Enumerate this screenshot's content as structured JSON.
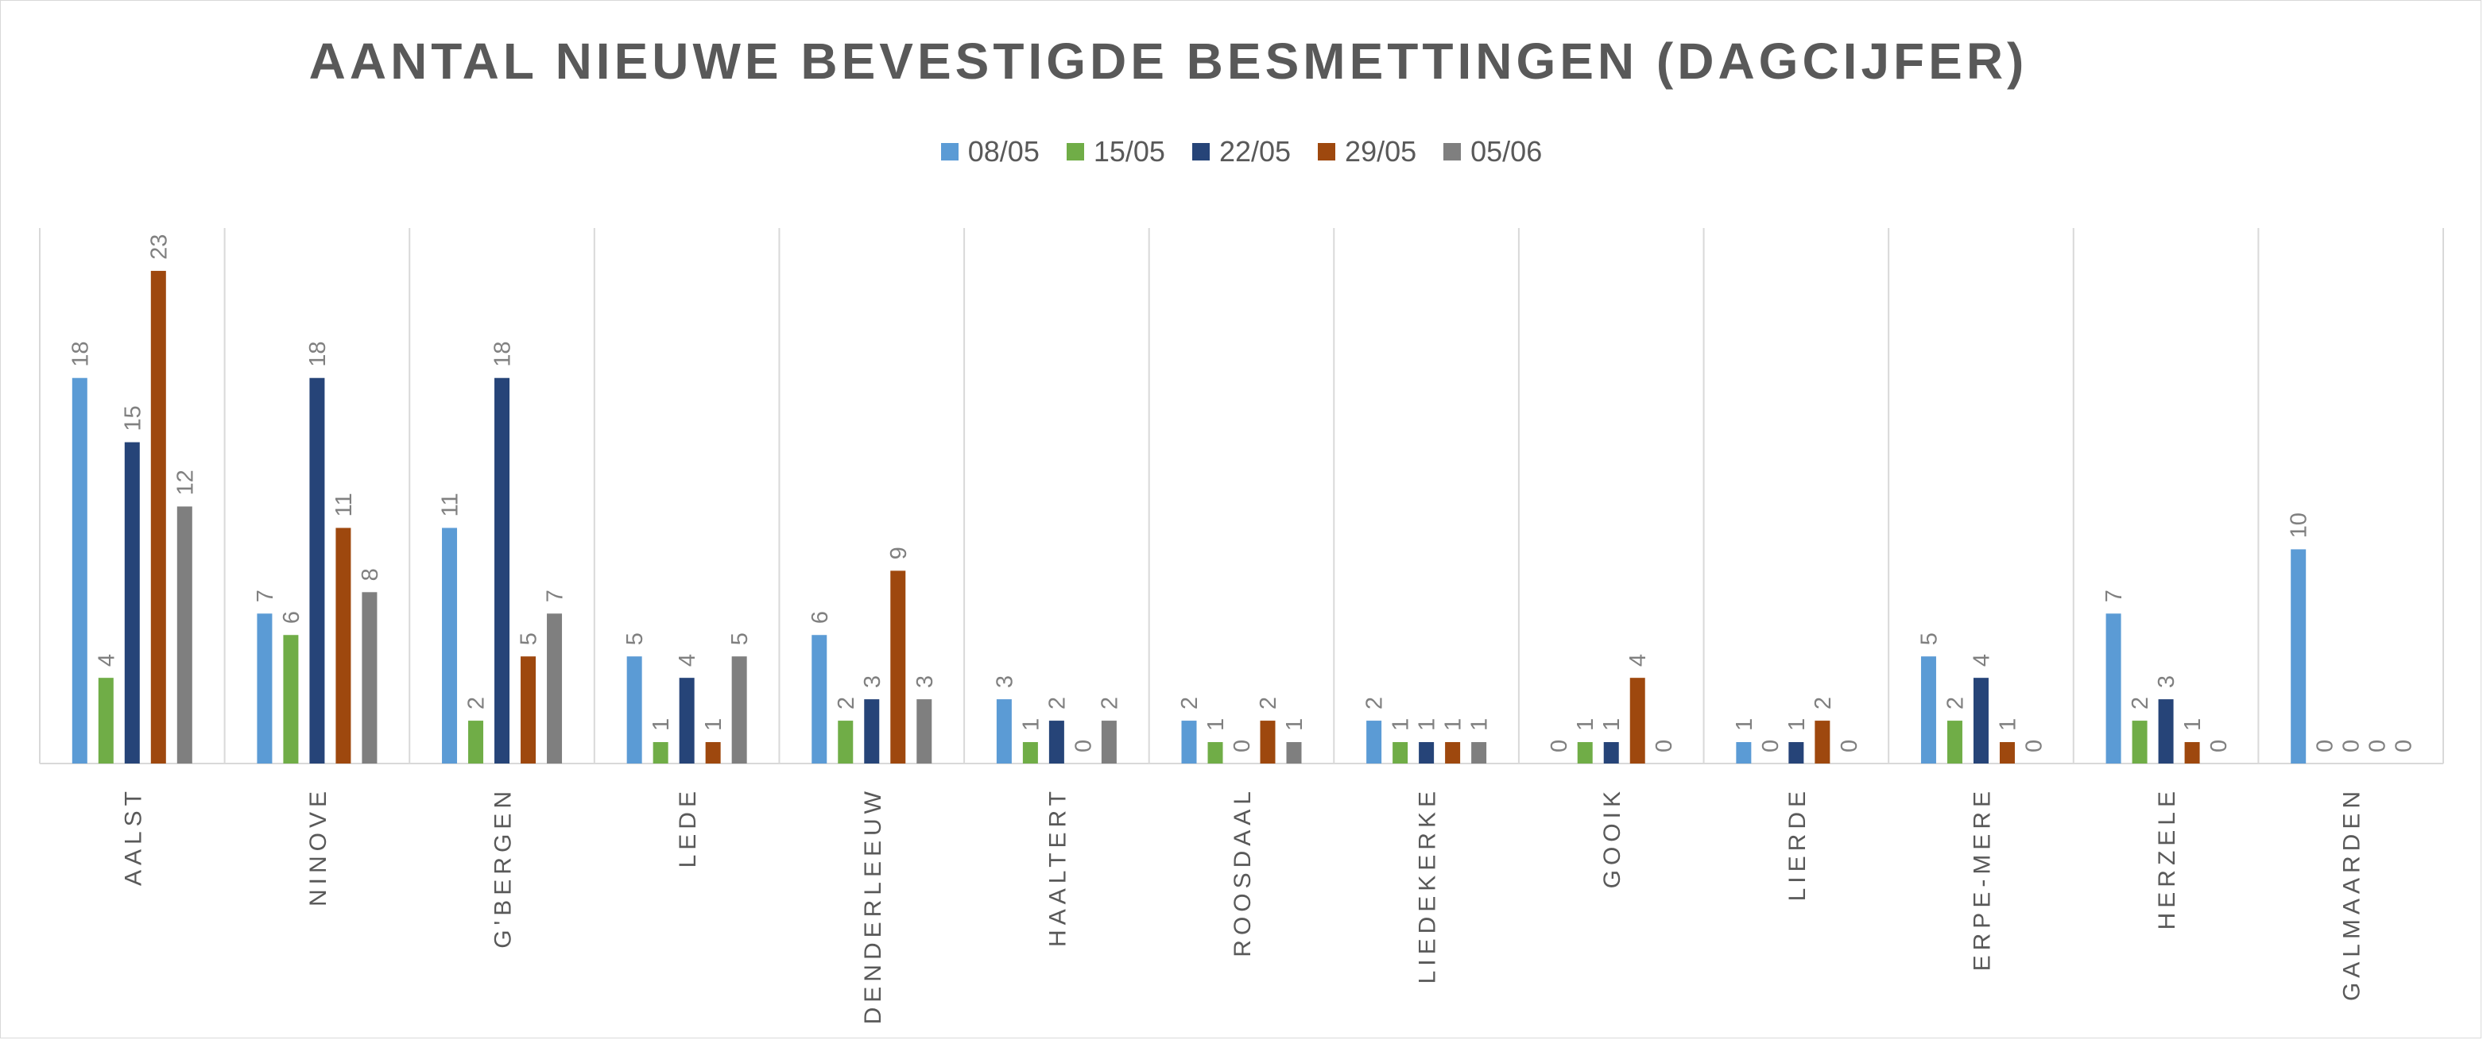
{
  "chart_data": {
    "type": "bar",
    "title": "AANTAL NIEUWE BEVESTIGDE BESMETTINGEN (DAGCIJFER)",
    "xlabel": "",
    "ylabel": "",
    "ylim": [
      0,
      25
    ],
    "grid": false,
    "legend_position": "top-center",
    "categories": [
      "AALST",
      "NINOVE",
      "G'BERGEN",
      "LEDE",
      "DENDERLEEUW",
      "HAALTERT",
      "ROOSDAAL",
      "LIEDEKERKE",
      "GOOIK",
      "LIERDE",
      "ERPE-MERE",
      "HERZELE",
      "GALMAARDEN"
    ],
    "series": [
      {
        "name": "08/05",
        "color": "#5b9bd5",
        "values": [
          18,
          7,
          11,
          5,
          6,
          3,
          2,
          2,
          0,
          1,
          5,
          7,
          10
        ]
      },
      {
        "name": "15/05",
        "color": "#70ad47",
        "values": [
          4,
          6,
          2,
          1,
          2,
          1,
          1,
          1,
          1,
          0,
          2,
          2,
          0
        ]
      },
      {
        "name": "22/05",
        "color": "#264478",
        "values": [
          15,
          18,
          18,
          4,
          3,
          2,
          0,
          1,
          1,
          1,
          4,
          3,
          0
        ]
      },
      {
        "name": "29/05",
        "color": "#9e480e",
        "values": [
          23,
          11,
          5,
          1,
          9,
          0,
          2,
          1,
          4,
          2,
          1,
          1,
          0
        ]
      },
      {
        "name": "05/06",
        "color": "#7f7f7f",
        "values": [
          12,
          8,
          7,
          5,
          3,
          2,
          1,
          1,
          0,
          0,
          0,
          0,
          0
        ]
      }
    ]
  },
  "colors": {
    "separator": "#d9d9d9",
    "axis": "#d9d9d9",
    "text": "#595959",
    "label": "#808080"
  }
}
